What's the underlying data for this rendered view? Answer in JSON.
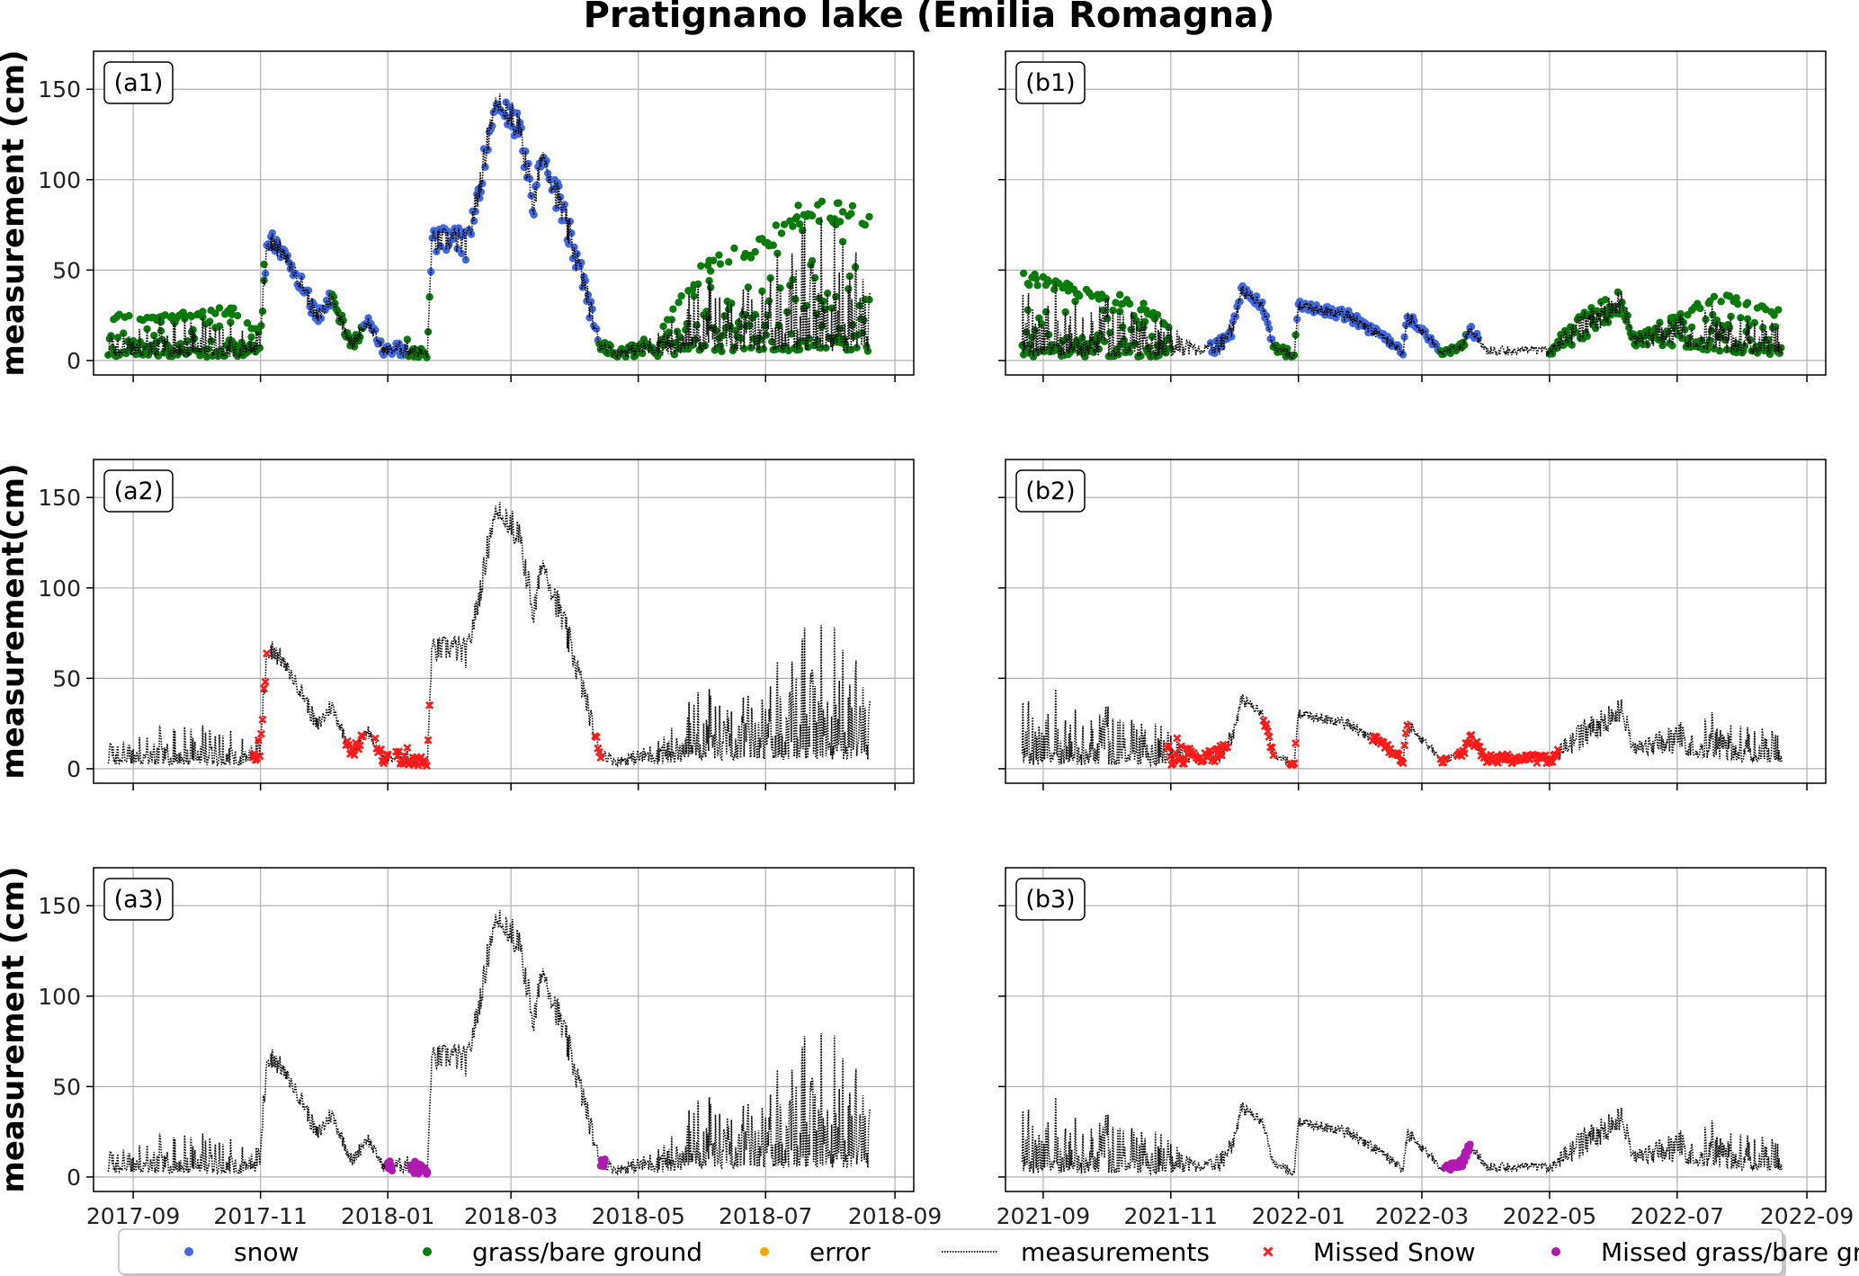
{
  "figure": {
    "title": "Pratignano lake (Emilia Romagna)"
  },
  "colors": {
    "snow": "#4169e1",
    "grass": "#0a7a0a",
    "error": "#ffa500",
    "measurements": "#000000",
    "missed_snow": "#ff1a1a",
    "missed_grass": "#b01ab0"
  },
  "legend": {
    "placement": "bottom-center",
    "items": [
      {
        "label": "snow",
        "marker": "dot",
        "color_key": "snow"
      },
      {
        "label": "grass/bare ground",
        "marker": "dot",
        "color_key": "grass"
      },
      {
        "label": "error",
        "marker": "dot",
        "color_key": "error"
      },
      {
        "label": "measurements",
        "marker": "dotted-line",
        "color_key": "measurements"
      },
      {
        "label": "Missed Snow",
        "marker": "x",
        "color_key": "missed_snow"
      },
      {
        "label": "Missed grass/bare ground",
        "marker": "dot",
        "color_key": "missed_grass"
      }
    ]
  },
  "chart_data": [
    {
      "id": "a1",
      "panel_label": "(a1)",
      "type": "scatter",
      "ylabel": "measurement (cm)",
      "ylim": [
        -8,
        171
      ],
      "xlim": [
        "2017-08-13",
        "2018-09-10"
      ],
      "grid": true,
      "xticks": [
        "2017-09",
        "2017-11",
        "2018-01",
        "2018-03",
        "2018-05",
        "2018-07",
        "2018-09"
      ],
      "yticks": [
        0,
        50,
        100,
        150
      ],
      "show_xtick_labels": false,
      "overlays": [
        "snow",
        "grass"
      ],
      "measurements": [
        {
          "date": "2017-08-20",
          "min": 2,
          "max": 27
        },
        {
          "date": "2017-09-10",
          "min": 2,
          "max": 24
        },
        {
          "date": "2017-10-01",
          "min": 2,
          "max": 28
        },
        {
          "date": "2017-10-20",
          "min": 2,
          "max": 30
        },
        {
          "date": "2017-11-01",
          "min": 2,
          "max": 15
        },
        {
          "date": "2017-11-04",
          "min": 60,
          "max": 86
        },
        {
          "date": "2017-11-12",
          "min": 55,
          "max": 62
        },
        {
          "date": "2017-11-22",
          "min": 35,
          "max": 45
        },
        {
          "date": "2017-11-28",
          "min": 18,
          "max": 28
        },
        {
          "date": "2017-12-05",
          "min": 30,
          "max": 40
        },
        {
          "date": "2017-12-15",
          "min": 5,
          "max": 12
        },
        {
          "date": "2017-12-22",
          "min": 18,
          "max": 26
        },
        {
          "date": "2017-12-30",
          "min": 3,
          "max": 8
        },
        {
          "date": "2018-01-10",
          "min": 2,
          "max": 12
        },
        {
          "date": "2018-01-20",
          "min": 1,
          "max": 5
        },
        {
          "date": "2018-01-22",
          "min": 58,
          "max": 72
        },
        {
          "date": "2018-02-01",
          "min": 60,
          "max": 75
        },
        {
          "date": "2018-02-08",
          "min": 55,
          "max": 72
        },
        {
          "date": "2018-02-15",
          "min": 95,
          "max": 110
        },
        {
          "date": "2018-02-22",
          "min": 140,
          "max": 162
        },
        {
          "date": "2018-03-05",
          "min": 120,
          "max": 140
        },
        {
          "date": "2018-03-12",
          "min": 75,
          "max": 95
        },
        {
          "date": "2018-03-16",
          "min": 110,
          "max": 120
        },
        {
          "date": "2018-03-25",
          "min": 75,
          "max": 95
        },
        {
          "date": "2018-04-05",
          "min": 35,
          "max": 50
        },
        {
          "date": "2018-04-12",
          "min": 5,
          "max": 15
        },
        {
          "date": "2018-04-20",
          "min": 2,
          "max": 6
        },
        {
          "date": "2018-05-10",
          "min": 2,
          "max": 15
        },
        {
          "date": "2018-06-01",
          "min": 5,
          "max": 55
        },
        {
          "date": "2018-07-01",
          "min": 5,
          "max": 70
        },
        {
          "date": "2018-07-20",
          "min": 5,
          "max": 90
        },
        {
          "date": "2018-08-20",
          "min": 5,
          "max": 85
        }
      ],
      "snow_range": [
        "2017-11-03",
        "2018-04-12"
      ],
      "grass_ranges": [
        [
          "2017-08-18",
          "2017-11-03"
        ],
        [
          "2017-12-05",
          "2017-12-20"
        ],
        [
          "2018-01-10",
          "2018-01-21"
        ],
        [
          "2018-04-12",
          "2018-08-24"
        ]
      ]
    },
    {
      "id": "b1",
      "panel_label": "(b1)",
      "type": "scatter",
      "ylabel": "",
      "ylim": [
        -8,
        171
      ],
      "xlim": [
        "2021-08-14",
        "2022-09-10"
      ],
      "grid": true,
      "xticks": [
        "2021-09",
        "2021-11",
        "2022-01",
        "2022-03",
        "2022-05",
        "2022-07",
        "2022-09"
      ],
      "yticks": [
        0,
        50,
        100,
        150
      ],
      "show_xtick_labels": false,
      "show_ytick_labels": false,
      "overlays": [
        "snow",
        "grass"
      ],
      "measurements": [
        {
          "date": "2021-08-22",
          "min": 2,
          "max": 50
        },
        {
          "date": "2021-09-15",
          "min": 2,
          "max": 42
        },
        {
          "date": "2021-10-15",
          "min": 2,
          "max": 35
        },
        {
          "date": "2021-10-30",
          "min": 2,
          "max": 22
        },
        {
          "date": "2021-11-15",
          "min": 3,
          "max": 8
        },
        {
          "date": "2021-11-25",
          "min": 3,
          "max": 14
        },
        {
          "date": "2021-12-01",
          "min": 15,
          "max": 25
        },
        {
          "date": "2021-12-05",
          "min": 35,
          "max": 42
        },
        {
          "date": "2021-12-15",
          "min": 28,
          "max": 33
        },
        {
          "date": "2021-12-20",
          "min": 5,
          "max": 10
        },
        {
          "date": "2021-12-30",
          "min": 0,
          "max": 5
        },
        {
          "date": "2022-01-01",
          "min": 28,
          "max": 33
        },
        {
          "date": "2022-01-25",
          "min": 22,
          "max": 28
        },
        {
          "date": "2022-02-10",
          "min": 10,
          "max": 16
        },
        {
          "date": "2022-02-20",
          "min": 2,
          "max": 6
        },
        {
          "date": "2022-02-22",
          "min": 20,
          "max": 28
        },
        {
          "date": "2022-03-05",
          "min": 10,
          "max": 14
        },
        {
          "date": "2022-03-10",
          "min": 3,
          "max": 6
        },
        {
          "date": "2022-03-20",
          "min": 5,
          "max": 10
        },
        {
          "date": "2022-03-24",
          "min": 15,
          "max": 20
        },
        {
          "date": "2022-04-01",
          "min": 3,
          "max": 8
        },
        {
          "date": "2022-05-01",
          "min": 3,
          "max": 8
        },
        {
          "date": "2022-05-15",
          "min": 10,
          "max": 25
        },
        {
          "date": "2022-06-05",
          "min": 25,
          "max": 40
        },
        {
          "date": "2022-06-10",
          "min": 8,
          "max": 15
        },
        {
          "date": "2022-07-01",
          "min": 8,
          "max": 25
        },
        {
          "date": "2022-07-20",
          "min": 5,
          "max": 38
        },
        {
          "date": "2022-08-20",
          "min": 3,
          "max": 28
        }
      ],
      "snow_range": [
        "2021-11-20",
        "2022-03-28"
      ],
      "grass_ranges": [
        [
          "2021-08-20",
          "2021-11-01"
        ],
        [
          "2021-12-20",
          "2021-12-31"
        ],
        [
          "2022-03-10",
          "2022-03-22"
        ],
        [
          "2022-05-01",
          "2022-08-24"
        ]
      ]
    },
    {
      "id": "a2",
      "panel_label": "(a2)",
      "type": "scatter",
      "ylabel": "measurement(cm)",
      "ylim": [
        -8,
        171
      ],
      "xlim": [
        "2017-08-13",
        "2018-09-10"
      ],
      "grid": true,
      "xticks": [
        "2017-09",
        "2017-11",
        "2018-01",
        "2018-03",
        "2018-05",
        "2018-07",
        "2018-09"
      ],
      "yticks": [
        0,
        50,
        100,
        150
      ],
      "show_xtick_labels": false,
      "overlays": [
        "missed_snow"
      ],
      "measurements_ref": "a1",
      "missed_snow_ranges": [
        [
          "2017-10-28",
          "2017-11-04"
        ],
        [
          "2017-12-12",
          "2017-12-20"
        ],
        [
          "2017-12-26",
          "2018-01-01"
        ],
        [
          "2018-01-05",
          "2018-01-21"
        ],
        [
          "2018-04-10",
          "2018-04-13"
        ]
      ]
    },
    {
      "id": "b2",
      "panel_label": "(b2)",
      "type": "scatter",
      "ylabel": "",
      "ylim": [
        -8,
        171
      ],
      "xlim": [
        "2021-08-14",
        "2022-09-10"
      ],
      "grid": true,
      "xticks": [
        "2021-09",
        "2021-11",
        "2022-01",
        "2022-03",
        "2022-05",
        "2022-07",
        "2022-09"
      ],
      "yticks": [
        0,
        50,
        100,
        150
      ],
      "show_xtick_labels": false,
      "show_ytick_labels": false,
      "overlays": [
        "missed_snow"
      ],
      "measurements_ref": "b1",
      "missed_snow_ranges": [
        [
          "2021-10-30",
          "2021-11-28"
        ],
        [
          "2021-12-15",
          "2021-12-20"
        ],
        [
          "2021-12-28",
          "2021-12-31"
        ],
        [
          "2022-02-05",
          "2022-02-22"
        ],
        [
          "2022-03-10",
          "2022-03-13"
        ],
        [
          "2022-03-18",
          "2022-05-05"
        ]
      ]
    },
    {
      "id": "a3",
      "panel_label": "(a3)",
      "type": "scatter",
      "ylabel": "measurement (cm)",
      "ylim": [
        -8,
        171
      ],
      "xlim": [
        "2017-08-13",
        "2018-09-10"
      ],
      "grid": true,
      "xticks": [
        "2017-09",
        "2017-11",
        "2018-01",
        "2018-03",
        "2018-05",
        "2018-07",
        "2018-09"
      ],
      "yticks": [
        0,
        50,
        100,
        150
      ],
      "show_xtick_labels": true,
      "overlays": [
        "missed_grass"
      ],
      "measurements_ref": "a1",
      "missed_grass_ranges": [
        [
          "2018-01-01",
          "2018-01-03"
        ],
        [
          "2018-01-12",
          "2018-01-20"
        ],
        [
          "2018-04-13",
          "2018-04-15"
        ]
      ]
    },
    {
      "id": "b3",
      "panel_label": "(b3)",
      "type": "scatter",
      "ylabel": "",
      "ylim": [
        -8,
        171
      ],
      "xlim": [
        "2021-08-14",
        "2022-09-10"
      ],
      "grid": true,
      "xticks": [
        "2021-09",
        "2021-11",
        "2022-01",
        "2022-03",
        "2022-05",
        "2022-07",
        "2022-09"
      ],
      "yticks": [
        0,
        50,
        100,
        150
      ],
      "show_xtick_labels": true,
      "show_ytick_labels": false,
      "overlays": [
        "missed_grass"
      ],
      "measurements_ref": "b1",
      "missed_grass_ranges": [
        [
          "2022-03-12",
          "2022-03-24"
        ]
      ]
    }
  ]
}
